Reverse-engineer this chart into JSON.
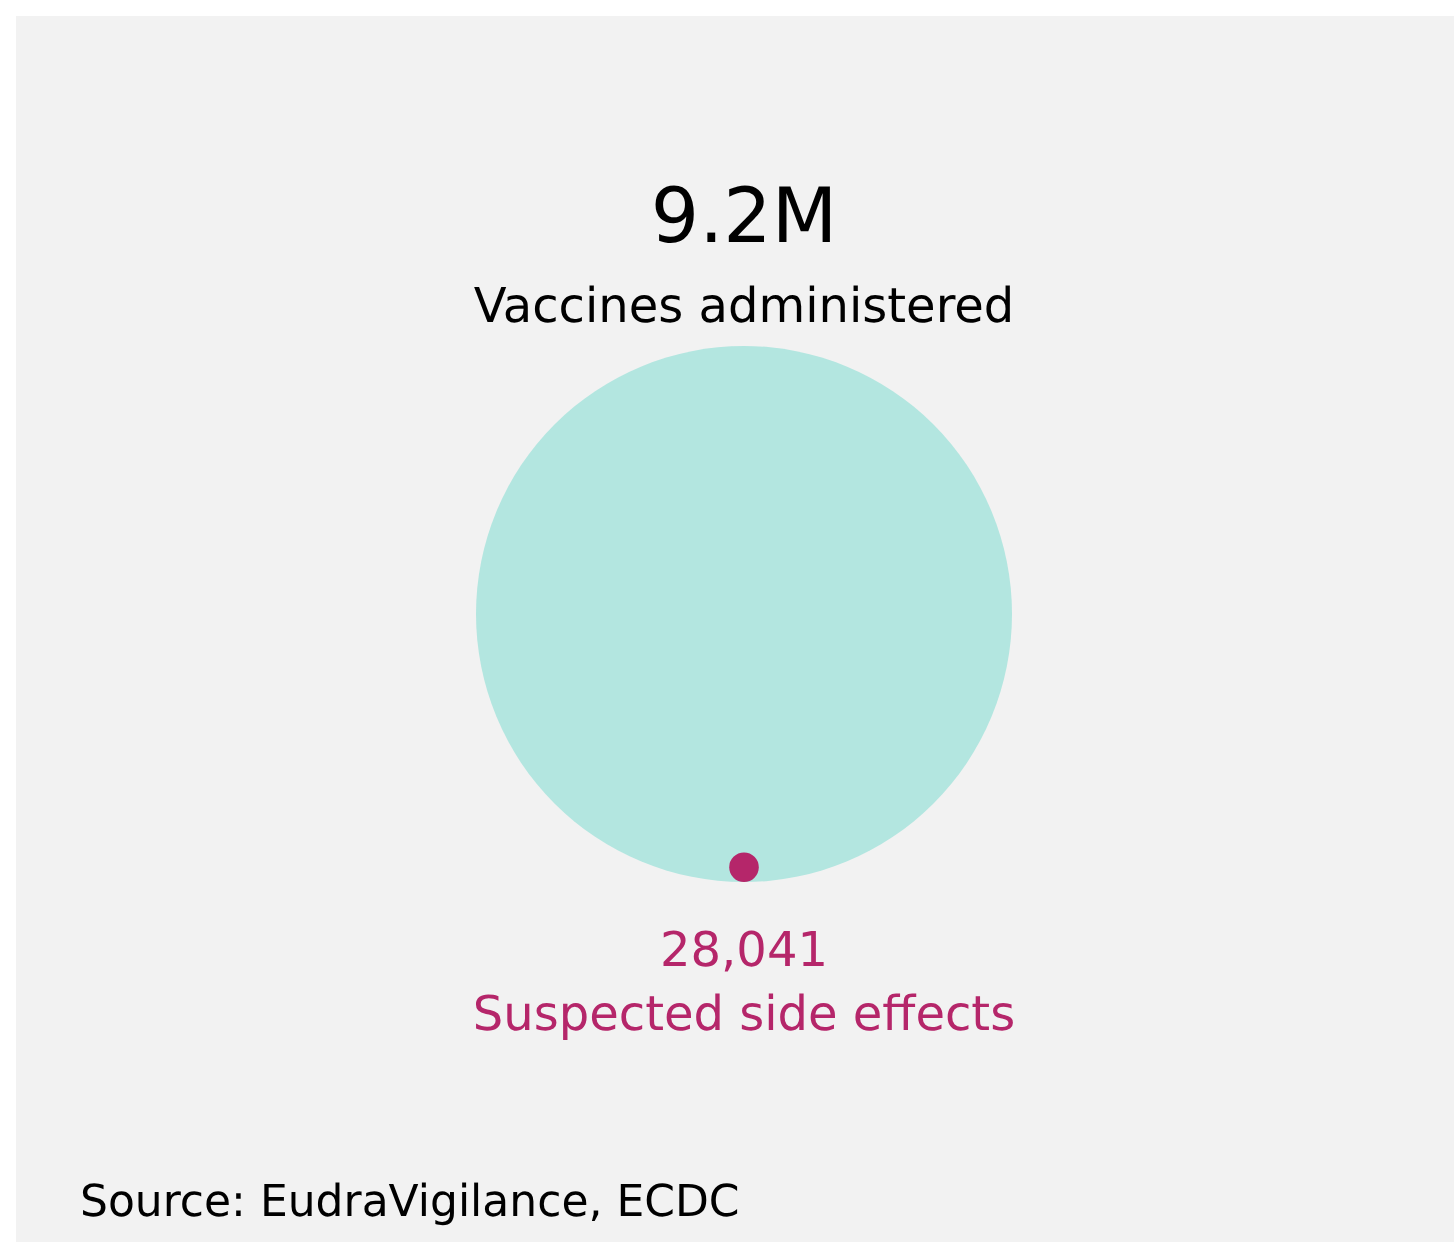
{
  "chart_data": {
    "type": "other",
    "categories": [
      "Vaccines administered",
      "Suspected side effects"
    ],
    "values": [
      9200000,
      28041
    ],
    "value_labels": [
      "9.2M",
      "28,041"
    ],
    "colors": [
      "#b3e6e0",
      "#b5266a"
    ],
    "annotations": [
      "Source: EudraVigilance, ECDC"
    ]
  }
}
